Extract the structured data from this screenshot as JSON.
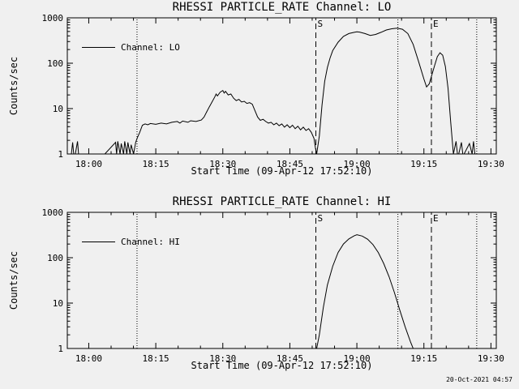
{
  "page": {
    "background": "#f0f0f0",
    "line_color": "#000000",
    "timestamp": "20-Oct-2021 04:57"
  },
  "chart_data": [
    {
      "type": "line",
      "title": "RHESSI PARTICLE_RATE Channel: LO",
      "xlabel": "Start Time (09-Apr-12 17:52:10)",
      "ylabel": "Counts/sec",
      "legend": "Channel: LO",
      "yscale": "log",
      "ylim": [
        1,
        1000
      ],
      "ytick_labels": [
        "1",
        "10",
        "100",
        "1000"
      ],
      "xlim_hours": [
        17.92,
        19.52
      ],
      "xticks": [
        {
          "hours": 18.0,
          "label": "18:00"
        },
        {
          "hours": 18.25,
          "label": "18:15"
        },
        {
          "hours": 18.5,
          "label": "18:30"
        },
        {
          "hours": 18.75,
          "label": "18:45"
        },
        {
          "hours": 19.0,
          "label": "19:00"
        },
        {
          "hours": 19.25,
          "label": "19:15"
        },
        {
          "hours": 19.5,
          "label": "19:30"
        }
      ],
      "minor_xtick_minutes": 5,
      "grid": false,
      "legend_position": "upper-left-inside",
      "vlines_dotted": [
        18.18,
        19.153,
        19.447
      ],
      "vlines_dashed": [
        {
          "hours": 18.847,
          "label": "S"
        },
        {
          "hours": 19.278,
          "label": "E"
        }
      ],
      "series": [
        {
          "name": "Channel: LO",
          "x": [
            17.935,
            17.94,
            17.944,
            17.95,
            17.958,
            17.962,
            17.967,
            18.0,
            18.06,
            18.1,
            18.104,
            18.108,
            18.117,
            18.121,
            18.13,
            18.134,
            18.142,
            18.146,
            18.154,
            18.158,
            18.167,
            18.175,
            18.18,
            18.19,
            18.2,
            18.21,
            18.22,
            18.23,
            18.25,
            18.27,
            18.29,
            18.31,
            18.33,
            18.34,
            18.35,
            18.37,
            18.38,
            18.4,
            18.42,
            18.43,
            18.44,
            18.45,
            18.46,
            18.47,
            18.475,
            18.48,
            18.49,
            18.5,
            18.505,
            18.51,
            18.52,
            18.53,
            18.54,
            18.55,
            18.56,
            18.57,
            18.58,
            18.59,
            18.6,
            18.61,
            18.62,
            18.63,
            18.64,
            18.65,
            18.66,
            18.67,
            18.68,
            18.69,
            18.7,
            18.71,
            18.72,
            18.73,
            18.74,
            18.75,
            18.76,
            18.77,
            18.78,
            18.79,
            18.8,
            18.81,
            18.82,
            18.83,
            18.84,
            18.845,
            18.85,
            18.86,
            18.87,
            18.88,
            18.89,
            18.9,
            18.91,
            18.93,
            18.95,
            18.97,
            18.99,
            19.0,
            19.01,
            19.03,
            19.05,
            19.07,
            19.09,
            19.11,
            19.13,
            19.15,
            19.17,
            19.19,
            19.21,
            19.23,
            19.25,
            19.26,
            19.27,
            19.29,
            19.3,
            19.31,
            19.32,
            19.33,
            19.34,
            19.35,
            19.36,
            19.37,
            19.375,
            19.38,
            19.39,
            19.395,
            19.4,
            19.42,
            19.43,
            19.435,
            19.44,
            19.45
          ],
          "y": [
            1,
            1.8,
            1,
            1,
            1.9,
            1,
            1,
            1,
            1,
            1.8,
            1,
            1.9,
            1,
            1.7,
            1,
            1.9,
            1,
            1.8,
            1,
            1.6,
            1,
            1.8,
            2.2,
            3,
            4.3,
            4.6,
            4.4,
            4.7,
            4.5,
            4.8,
            4.6,
            5,
            5.2,
            4.8,
            5.3,
            5,
            5.4,
            5.2,
            5.6,
            6.5,
            8.5,
            11,
            14,
            18,
            21,
            19,
            23,
            25,
            22,
            24,
            20,
            21,
            17,
            15,
            16,
            14,
            14.5,
            13,
            13.5,
            12.5,
            9,
            6.5,
            5.5,
            5.8,
            5.2,
            4.8,
            5,
            4.4,
            4.8,
            4.2,
            4.6,
            3.9,
            4.4,
            3.8,
            4.3,
            3.6,
            4.1,
            3.4,
            3.9,
            3.3,
            3.6,
            3,
            2.2,
            1.4,
            1,
            2.5,
            12,
            40,
            80,
            130,
            190,
            290,
            390,
            450,
            480,
            490,
            485,
            450,
            410,
            430,
            480,
            540,
            575,
            590,
            560,
            450,
            260,
            110,
            45,
            30,
            35,
            90,
            140,
            170,
            150,
            85,
            28,
            5,
            1,
            1.9,
            1,
            1,
            1.8,
            1,
            1,
            1.7,
            1,
            1.9,
            1,
            1
          ]
        }
      ]
    },
    {
      "type": "line",
      "title": "RHESSI PARTICLE_RATE Channel: HI",
      "xlabel": "Start Time (09-Apr-12 17:52:10)",
      "ylabel": "Counts/sec",
      "legend": "Channel: HI",
      "yscale": "log",
      "ylim": [
        1,
        1000
      ],
      "ytick_labels": [
        "1",
        "10",
        "100",
        "1000"
      ],
      "xlim_hours": [
        17.92,
        19.52
      ],
      "xticks": [
        {
          "hours": 18.0,
          "label": "18:00"
        },
        {
          "hours": 18.25,
          "label": "18:15"
        },
        {
          "hours": 18.5,
          "label": "18:30"
        },
        {
          "hours": 18.75,
          "label": "18:45"
        },
        {
          "hours": 19.0,
          "label": "19:00"
        },
        {
          "hours": 19.25,
          "label": "19:15"
        },
        {
          "hours": 19.5,
          "label": "19:30"
        }
      ],
      "minor_xtick_minutes": 5,
      "grid": false,
      "legend_position": "upper-left-inside",
      "vlines_dotted": [
        18.18,
        19.153,
        19.447
      ],
      "vlines_dashed": [
        {
          "hours": 18.847,
          "label": "S"
        },
        {
          "hours": 19.278,
          "label": "E"
        }
      ],
      "series": [
        {
          "name": "Channel: HI",
          "x": [
            18.85,
            18.86,
            18.875,
            18.89,
            18.91,
            18.93,
            18.95,
            18.97,
            18.99,
            19.0,
            19.02,
            19.04,
            19.06,
            19.08,
            19.1,
            19.12,
            19.14,
            19.16,
            19.18,
            19.2,
            19.21
          ],
          "y": [
            1,
            2,
            8,
            25,
            65,
            130,
            200,
            260,
            305,
            320,
            300,
            255,
            195,
            130,
            75,
            38,
            17,
            7,
            3,
            1.4,
            1
          ]
        }
      ]
    }
  ]
}
